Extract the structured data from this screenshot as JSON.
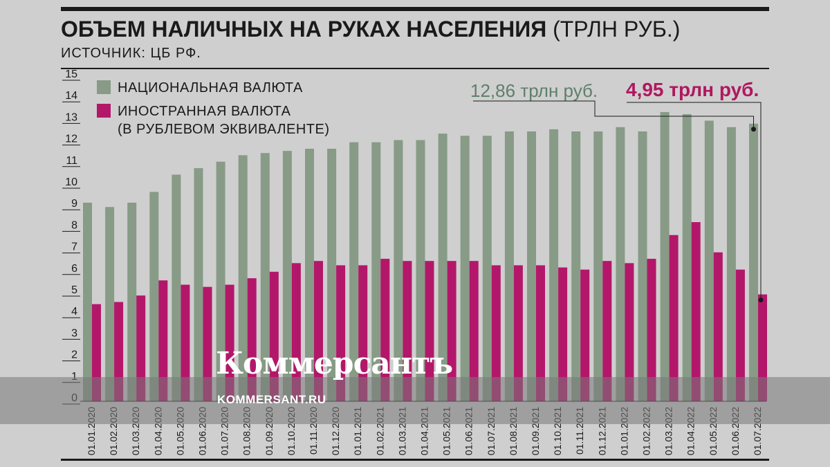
{
  "header": {
    "title_bold": "ОБЪЕМ НАЛИЧНЫХ НА РУКАХ НАСЕЛЕНИЯ",
    "title_unit": "(ТРЛН РУБ.)",
    "source": "ИСТОЧНИК: ЦБ РФ."
  },
  "legend": {
    "national": "НАЦИОНАЛЬНАЯ ВАЛЮТА",
    "foreign_line1": "ИНОСТРАННАЯ ВАЛЮТА",
    "foreign_line2": "(В РУБЛЕВОМ ЭКВИВАЛЕНТЕ)"
  },
  "annotations": {
    "national_last": "12,86 трлн руб.",
    "foreign_last": "4,95 трлн руб."
  },
  "watermark": {
    "logo": "Коммерсантъ",
    "url": "KOMMERSANT.RU"
  },
  "colors": {
    "national": "#879b87",
    "foreign": "#b3176a",
    "annotation_national": "#5f7f6a",
    "annotation_foreign": "#b0175f"
  },
  "chart_data": {
    "type": "bar",
    "ylim": [
      0,
      15
    ],
    "yticks": [
      0,
      1,
      2,
      3,
      4,
      5,
      6,
      7,
      8,
      9,
      10,
      11,
      12,
      13,
      14,
      15
    ],
    "categories": [
      "01.01.2020",
      "01.02.2020",
      "01.03.2020",
      "01.04.2020",
      "01.05.2020",
      "01.06.2020",
      "01.07.2020",
      "01.08.2020",
      "01.09.2020",
      "01.10.2020",
      "01.11.2020",
      "01.12.2020",
      "01.01.2021",
      "01.02.2021",
      "01.03.2021",
      "01.04.2021",
      "01.05.2021",
      "01.06.2021",
      "01.07.2021",
      "01.08.2021",
      "01.09.2021",
      "01.10.2021",
      "01.11.2021",
      "01.12.2021",
      "01.01.2022",
      "01.02.2022",
      "01.03.2022",
      "01.04.2022",
      "01.05.2022",
      "01.06.2022",
      "01.07.2022"
    ],
    "series": [
      {
        "name": "НАЦИОНАЛЬНАЯ ВАЛЮТА",
        "values": [
          9.2,
          9.0,
          9.2,
          9.7,
          10.5,
          10.8,
          11.1,
          11.4,
          11.5,
          11.6,
          11.7,
          11.7,
          12.0,
          12.0,
          12.1,
          12.1,
          12.4,
          12.3,
          12.3,
          12.5,
          12.5,
          12.6,
          12.5,
          12.5,
          12.7,
          12.5,
          13.4,
          13.3,
          13.0,
          12.7,
          12.86
        ]
      },
      {
        "name": "ИНОСТРАННАЯ ВАЛЮТА (В РУБЛЕВОМ ЭКВИВАЛЕНТЕ)",
        "values": [
          4.5,
          4.6,
          4.9,
          5.6,
          5.4,
          5.3,
          5.4,
          5.7,
          6.0,
          6.4,
          6.5,
          6.3,
          6.3,
          6.6,
          6.5,
          6.5,
          6.5,
          6.5,
          6.3,
          6.3,
          6.3,
          6.2,
          6.1,
          6.5,
          6.4,
          6.6,
          7.7,
          8.3,
          6.9,
          6.1,
          4.95
        ]
      }
    ]
  }
}
